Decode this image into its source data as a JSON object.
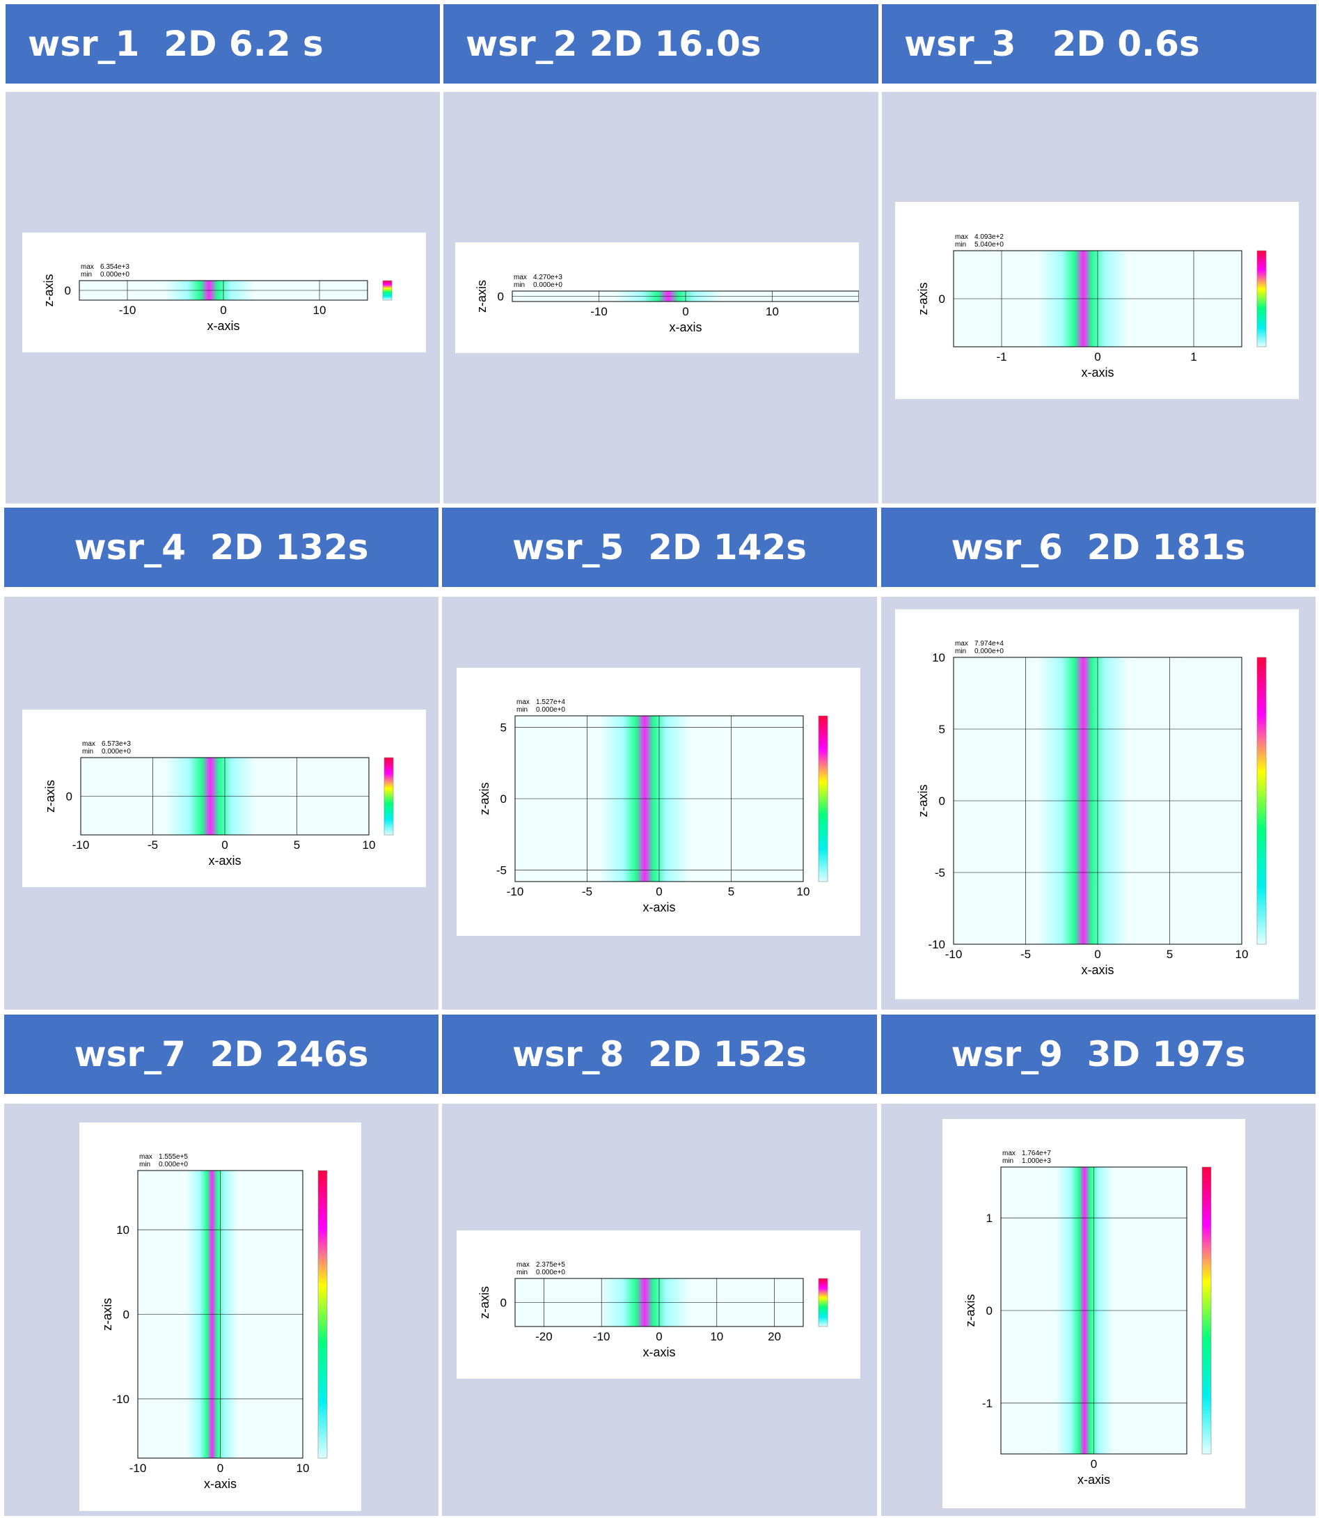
{
  "colors": {
    "header_bg": "#4472c4",
    "header_text": "#ffffff",
    "cell_bg": "#cfd5e7",
    "plot_bg": "#ffffff",
    "colormap": [
      "#e0ffff",
      "#00f0f0",
      "#00ff80",
      "#ffff00",
      "#ff00ff",
      "#ff0040"
    ]
  },
  "panels": [
    {
      "title": "wsr_1  2D 6.2 s",
      "chart_data": {
        "type": "heatmap",
        "max_label": "max",
        "max_value": "6.354e+3",
        "min_label": "min",
        "min_value": "0.000e+0",
        "xlabel": "x-axis",
        "ylabel": "z-axis",
        "xlim": [
          -15,
          15
        ],
        "ylim": [
          -1,
          1
        ],
        "xticks": [
          "-10",
          "0",
          "10"
        ],
        "yticks": [
          "0"
        ],
        "grid": true,
        "legend": "colorbar-right",
        "colormap": "cyan-green-yellow-magenta-red"
      }
    },
    {
      "title": "wsr_2 2D 16.0s",
      "chart_data": {
        "type": "heatmap",
        "max_label": "max",
        "max_value": "4.270e+3",
        "min_label": "min",
        "min_value": "0.000e+0",
        "xlabel": "x-axis",
        "ylabel": "z-axis",
        "xlim": [
          -20,
          20
        ],
        "ylim": [
          -0.5,
          0.5
        ],
        "xticks": [
          "-10",
          "0",
          "10"
        ],
        "yticks": [
          "0"
        ],
        "grid": true,
        "legend": "colorbar-right",
        "colormap": "cyan-green-yellow-magenta-red"
      }
    },
    {
      "title": "wsr_3   2D 0.6s",
      "chart_data": {
        "type": "heatmap",
        "max_label": "max",
        "max_value": "4.093e+2",
        "min_label": "min",
        "min_value": "5.040e+0",
        "xlabel": "x-axis",
        "ylabel": "z-axis",
        "xlim": [
          -1.5,
          1.5
        ],
        "ylim": [
          -0.5,
          0.5
        ],
        "xticks": [
          "-1",
          "0",
          "1"
        ],
        "yticks": [
          "0"
        ],
        "grid": true,
        "legend": "colorbar-right",
        "colormap": "cyan-green-yellow-magenta-red"
      }
    },
    {
      "title": "wsr_4  2D 132s",
      "chart_data": {
        "type": "heatmap",
        "max_label": "max",
        "max_value": "6.573e+3",
        "min_label": "min",
        "min_value": "0.000e+0",
        "xlabel": "x-axis",
        "ylabel": "z-axis",
        "xlim": [
          -10,
          10
        ],
        "ylim": [
          -2.2,
          2.2
        ],
        "xticks": [
          "-10",
          "-5",
          "0",
          "5",
          "10"
        ],
        "yticks": [
          "0"
        ],
        "grid": true,
        "legend": "colorbar-right",
        "colormap": "cyan-green-yellow-magenta-red"
      }
    },
    {
      "title": "wsr_5  2D 142s",
      "chart_data": {
        "type": "heatmap",
        "max_label": "max",
        "max_value": "1.527e+4",
        "min_label": "min",
        "min_value": "0.000e+0",
        "xlabel": "x-axis",
        "ylabel": "z-axis",
        "xlim": [
          -10,
          10
        ],
        "ylim": [
          -5.8,
          5.8
        ],
        "xticks": [
          "-10",
          "-5",
          "0",
          "5",
          "10"
        ],
        "yticks": [
          "-5",
          "0",
          "5"
        ],
        "grid": true,
        "legend": "colorbar-right",
        "colormap": "cyan-green-yellow-magenta-red"
      }
    },
    {
      "title": "wsr_6  2D 181s",
      "chart_data": {
        "type": "heatmap",
        "max_label": "max",
        "max_value": "7.974e+4",
        "min_label": "min",
        "min_value": "0.000e+0",
        "xlabel": "x-axis",
        "ylabel": "z-axis",
        "xlim": [
          -10,
          10
        ],
        "ylim": [
          -10,
          10
        ],
        "xticks": [
          "-10",
          "-5",
          "0",
          "5",
          "10"
        ],
        "yticks": [
          "-10",
          "-5",
          "0",
          "5",
          "10"
        ],
        "grid": true,
        "legend": "colorbar-right",
        "colormap": "cyan-green-yellow-magenta-red"
      }
    },
    {
      "title": "wsr_7  2D 246s",
      "chart_data": {
        "type": "heatmap",
        "max_label": "max",
        "max_value": "1.555e+5",
        "min_label": "min",
        "min_value": "0.000e+0",
        "xlabel": "x-axis",
        "ylabel": "z-axis",
        "xlim": [
          -10,
          10
        ],
        "ylim": [
          -17,
          17
        ],
        "xticks": [
          "-10",
          "0",
          "10"
        ],
        "yticks": [
          "-10",
          "0",
          "10"
        ],
        "grid": true,
        "legend": "colorbar-right",
        "colormap": "cyan-green-yellow-magenta-red"
      }
    },
    {
      "title": "wsr_8  2D 152s",
      "chart_data": {
        "type": "heatmap",
        "max_label": "max",
        "max_value": "2.375e+5",
        "min_label": "min",
        "min_value": "0.000e+0",
        "xlabel": "x-axis",
        "ylabel": "z-axis",
        "xlim": [
          -25,
          25
        ],
        "ylim": [
          -4,
          4
        ],
        "xticks": [
          "-20",
          "-10",
          "0",
          "10",
          "20"
        ],
        "yticks": [
          "0"
        ],
        "grid": true,
        "legend": "colorbar-right",
        "colormap": "cyan-green-yellow-magenta-red"
      }
    },
    {
      "title": "wsr_9  3D 197s",
      "chart_data": {
        "type": "heatmap",
        "max_label": "max",
        "max_value": "1.764e+7",
        "min_label": "min",
        "min_value": "1.000e+3",
        "xlabel": "x-axis",
        "ylabel": "z-axis",
        "xlim": [
          -1,
          1
        ],
        "ylim": [
          -1.55,
          1.55
        ],
        "xticks": [
          "0"
        ],
        "yticks": [
          "-1",
          "0",
          "1"
        ],
        "grid": true,
        "legend": "colorbar-right",
        "colormap": "cyan-green-yellow-magenta-red"
      }
    }
  ]
}
